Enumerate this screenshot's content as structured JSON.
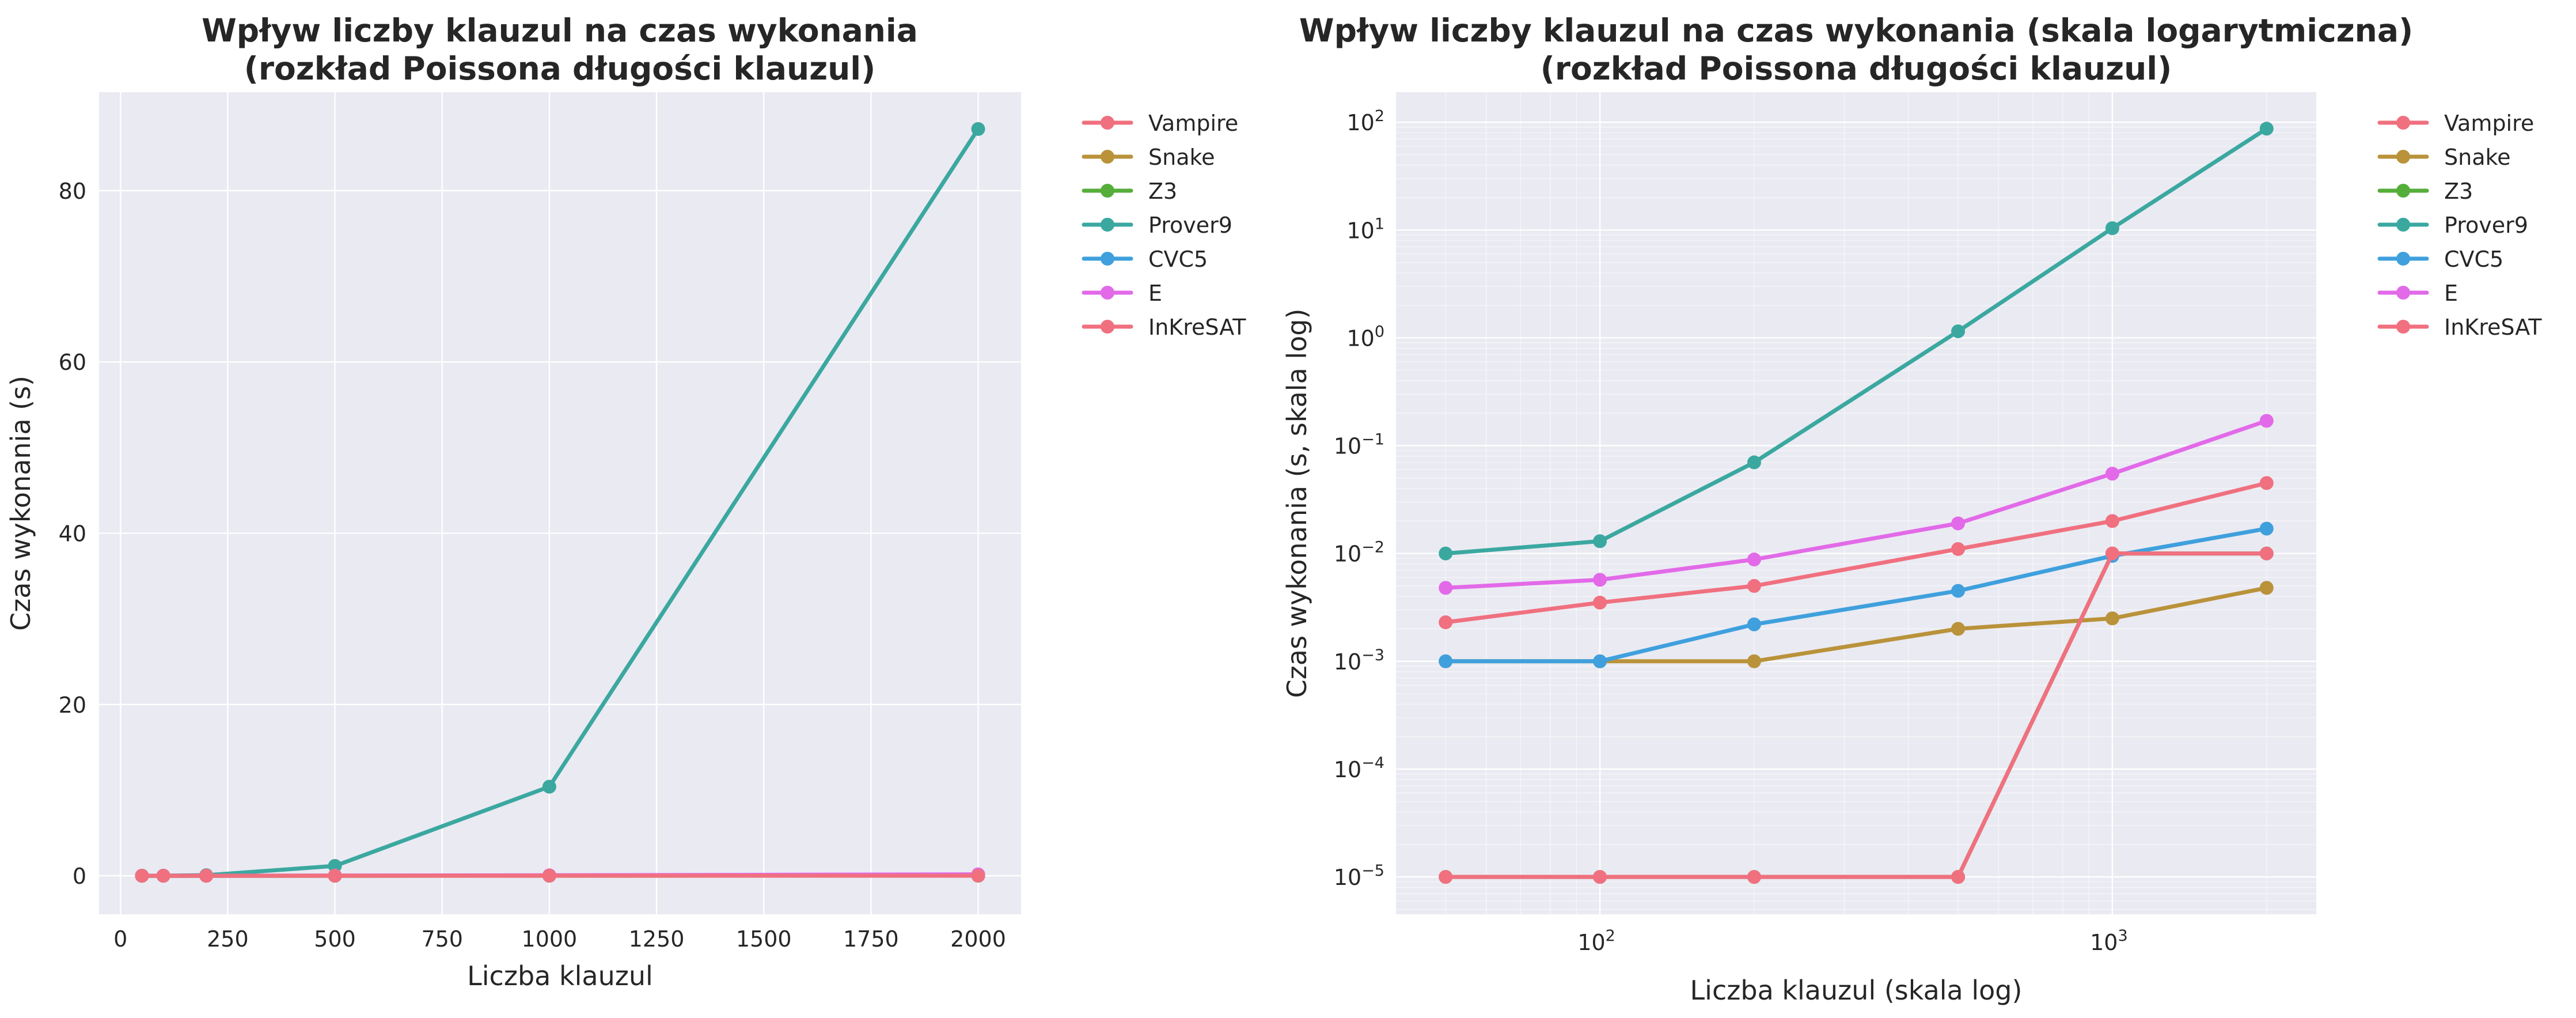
{
  "chart_data": [
    {
      "type": "line",
      "title": "Wpływ liczby klauzul na czas wykonania\n(rozkład Poissona długości klauzul)",
      "xlabel": "Liczba klauzul",
      "ylabel": "Czas wykonania (s)",
      "xscale": "linear",
      "yscale": "linear",
      "xlim": [
        -50,
        2100
      ],
      "ylim": [
        -4.5,
        91.5
      ],
      "xticks": [
        0,
        250,
        500,
        750,
        1000,
        1250,
        1500,
        1750,
        2000
      ],
      "yticks": [
        0,
        20,
        40,
        60,
        80
      ],
      "grid": true,
      "legend_position": "outside-top-right",
      "x": [
        50,
        100,
        200,
        500,
        1000,
        2000
      ],
      "series": [
        {
          "name": "Vampire",
          "color": "#f0707f",
          "values": [
            0.0023,
            0.0035,
            0.005,
            0.011,
            0.02,
            0.045
          ]
        },
        {
          "name": "Snake",
          "color": "#b9923a",
          "values": [
            0.001,
            0.001,
            0.001,
            0.002,
            0.0025,
            0.0048
          ]
        },
        {
          "name": "Z3",
          "color": "#55ae3a",
          "values": [
            1e-05,
            1e-05,
            1e-05,
            1e-05,
            0.01,
            0.01
          ]
        },
        {
          "name": "Prover9",
          "color": "#3ba8a0",
          "values": [
            0.01,
            0.013,
            0.07,
            1.15,
            10.4,
            87.2
          ]
        },
        {
          "name": "CVC5",
          "color": "#3fa0dd",
          "values": [
            0.001,
            0.001,
            0.0022,
            0.0045,
            0.0095,
            0.017
          ]
        },
        {
          "name": "E",
          "color": "#e26ae8",
          "values": [
            0.0048,
            0.0057,
            0.0088,
            0.019,
            0.055,
            0.17
          ]
        },
        {
          "name": "InKreSAT",
          "color": "#f0707f",
          "values": [
            1e-05,
            1e-05,
            1e-05,
            1e-05,
            0.01,
            0.01
          ]
        }
      ]
    },
    {
      "type": "line",
      "title": "Wpływ liczby klauzul na czas wykonania (skala logarytmiczna)\n(rozkład Poissona długości klauzul)",
      "xlabel": "Liczba klauzul (skala log)",
      "ylabel": "Czas wykonania (s, skala log)",
      "xscale": "log",
      "yscale": "log",
      "xlim": [
        40,
        2500
      ],
      "ylim": [
        4.5e-06,
        190
      ],
      "xticks": [
        100,
        1000
      ],
      "xtick_labels": [
        [
          "10",
          "2"
        ],
        [
          "10",
          "3"
        ]
      ],
      "yticks": [
        1e-05,
        0.0001,
        0.001,
        0.01,
        0.1,
        1,
        10,
        100
      ],
      "ytick_labels": [
        [
          "10",
          "−5"
        ],
        [
          "10",
          "−4"
        ],
        [
          "10",
          "−3"
        ],
        [
          "10",
          "−2"
        ],
        [
          "10",
          "−1"
        ],
        [
          "10",
          "0"
        ],
        [
          "10",
          "1"
        ],
        [
          "10",
          "2"
        ]
      ],
      "grid": true,
      "legend_position": "outside-top-right",
      "x": [
        50,
        100,
        200,
        500,
        1000,
        2000
      ],
      "series": [
        {
          "name": "Vampire",
          "color": "#f0707f",
          "values": [
            0.0023,
            0.0035,
            0.005,
            0.011,
            0.02,
            0.045
          ]
        },
        {
          "name": "Snake",
          "color": "#b9923a",
          "values": [
            0.001,
            0.001,
            0.001,
            0.002,
            0.0025,
            0.0048
          ]
        },
        {
          "name": "Z3",
          "color": "#55ae3a",
          "values": [
            1e-05,
            1e-05,
            1e-05,
            1e-05,
            0.01,
            0.01
          ]
        },
        {
          "name": "Prover9",
          "color": "#3ba8a0",
          "values": [
            0.01,
            0.013,
            0.07,
            1.15,
            10.4,
            87.2
          ]
        },
        {
          "name": "CVC5",
          "color": "#3fa0dd",
          "values": [
            0.001,
            0.001,
            0.0022,
            0.0045,
            0.0095,
            0.017
          ]
        },
        {
          "name": "E",
          "color": "#e26ae8",
          "values": [
            0.0048,
            0.0057,
            0.0088,
            0.019,
            0.055,
            0.17
          ]
        },
        {
          "name": "InKreSAT",
          "color": "#f0707f",
          "values": [
            1e-05,
            1e-05,
            1e-05,
            1e-05,
            0.01,
            0.01
          ]
        }
      ]
    }
  ]
}
